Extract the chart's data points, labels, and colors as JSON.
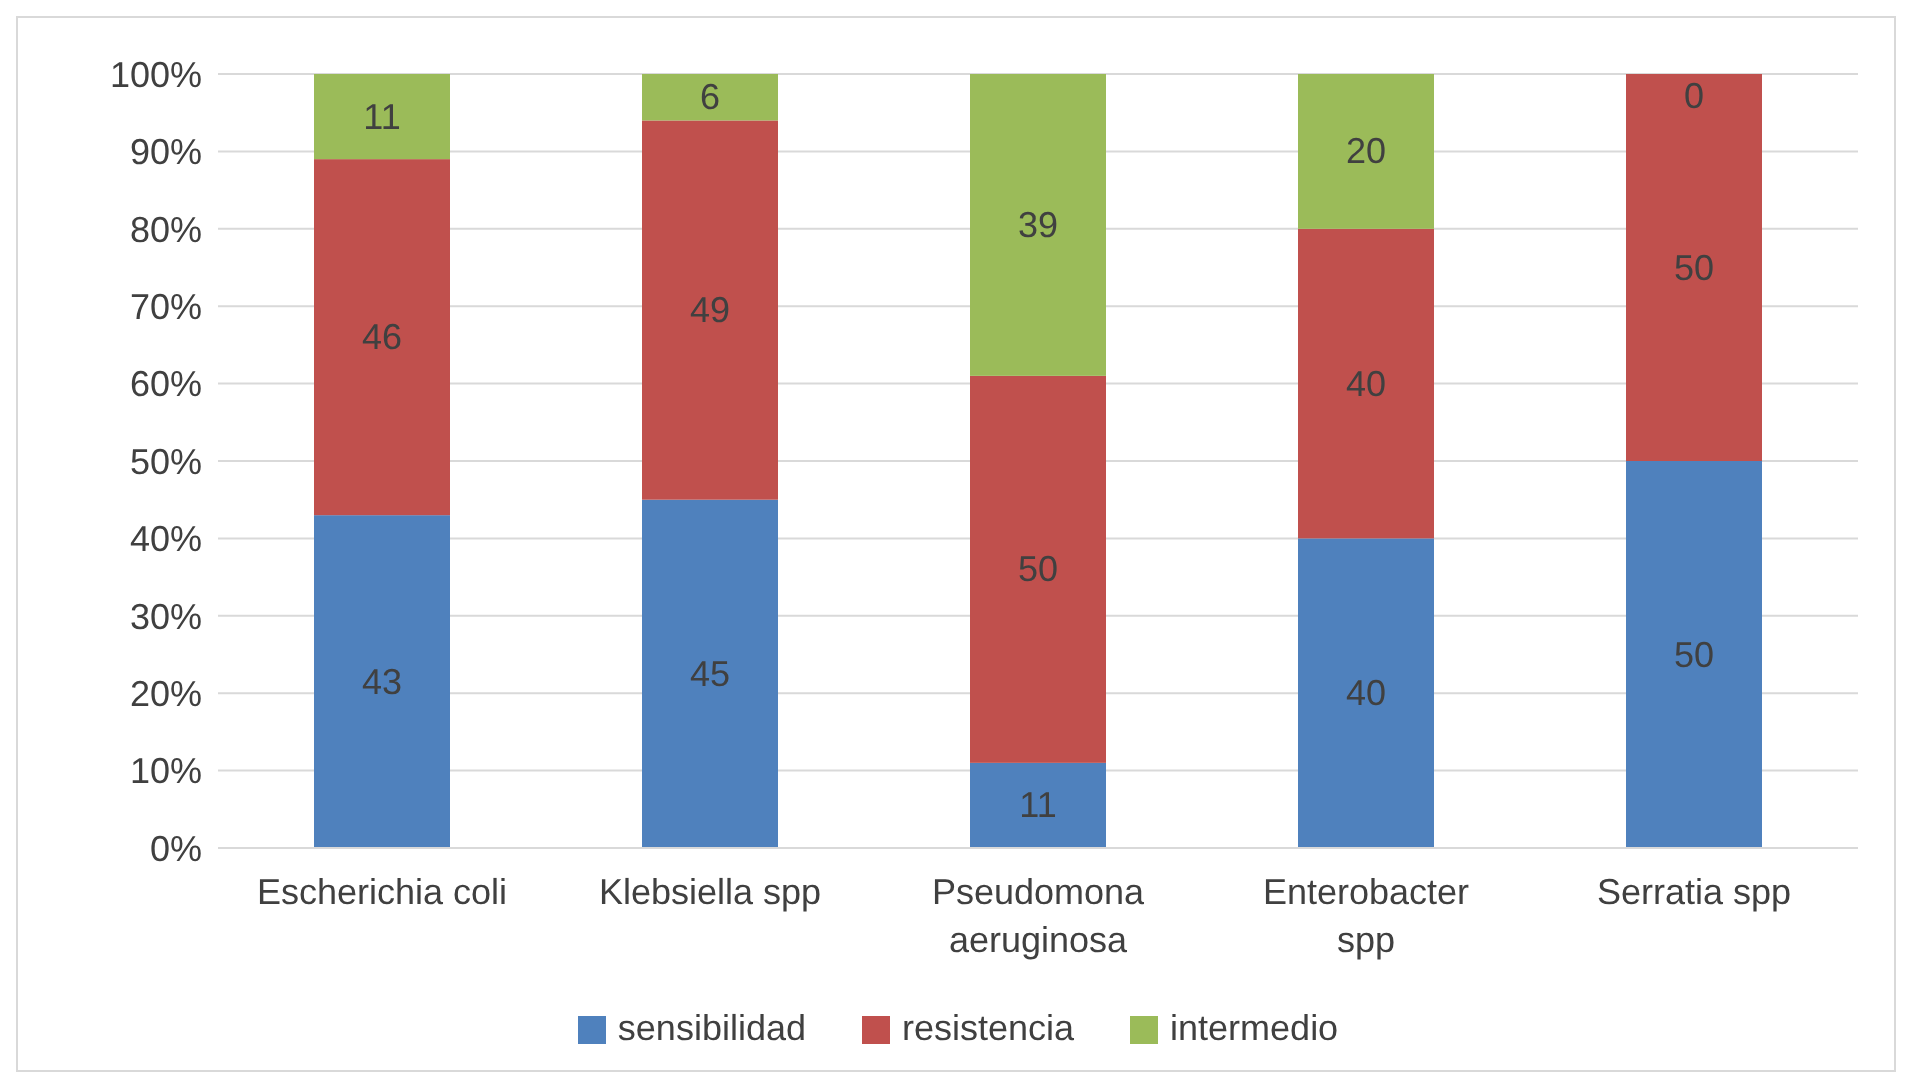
{
  "chart_data": {
    "type": "bar",
    "stacked": true,
    "categories": [
      "Escherichia coli",
      "Klebsiella spp",
      "Pseudomona aeruginosa",
      "Enterobacter spp",
      "Serratia spp"
    ],
    "series": [
      {
        "name": "sensibilidad",
        "color": "#4f81bd",
        "values": [
          43,
          45,
          11,
          40,
          50
        ]
      },
      {
        "name": "resistencia",
        "color": "#c0504d",
        "values": [
          46,
          49,
          50,
          40,
          50
        ]
      },
      {
        "name": "intermedio",
        "color": "#9bbb59",
        "values": [
          11,
          6,
          39,
          20,
          0
        ]
      }
    ],
    "ylim": [
      0,
      100
    ],
    "yticks": [
      {
        "value": 0,
        "label": "0%"
      },
      {
        "value": 10,
        "label": "10%"
      },
      {
        "value": 20,
        "label": "20%"
      },
      {
        "value": 30,
        "label": "30%"
      },
      {
        "value": 40,
        "label": "40%"
      },
      {
        "value": 50,
        "label": "50%"
      },
      {
        "value": 60,
        "label": "60%"
      },
      {
        "value": 70,
        "label": "70%"
      },
      {
        "value": 80,
        "label": "80%"
      },
      {
        "value": 90,
        "label": "90%"
      },
      {
        "value": 100,
        "label": "100%"
      }
    ],
    "grid": "y",
    "legend": "bottom",
    "data_labels": true
  }
}
